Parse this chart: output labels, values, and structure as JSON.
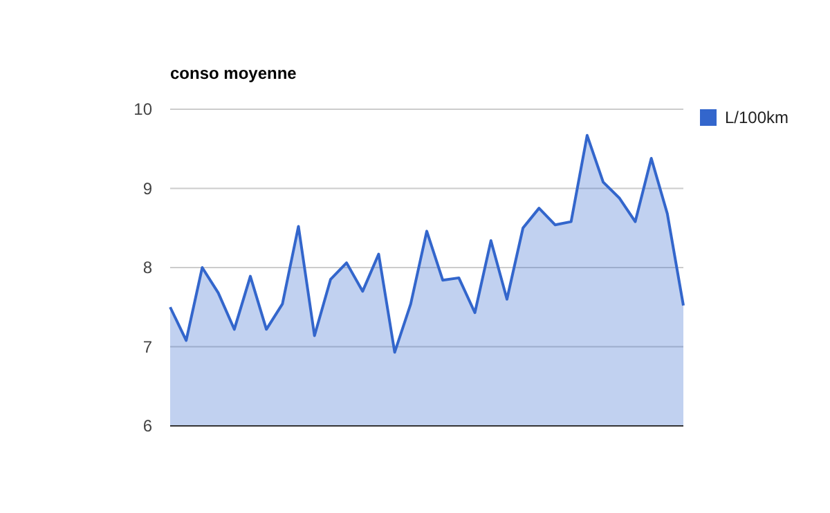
{
  "chart_data": {
    "type": "area",
    "title": "conso moyenne",
    "categories": [
      null,
      null,
      null,
      null,
      null,
      null,
      null,
      null,
      null,
      null,
      null,
      null,
      null,
      null,
      null,
      null,
      null,
      null,
      null,
      null,
      null,
      null,
      null,
      null,
      null,
      null,
      null,
      null,
      null,
      null,
      null,
      null,
      null
    ],
    "series": [
      {
        "name": "L/100km",
        "color": "#3366cc",
        "values": [
          7.5,
          7.08,
          8.0,
          7.68,
          7.22,
          7.89,
          7.22,
          7.54,
          8.52,
          7.14,
          7.85,
          8.06,
          7.7,
          8.17,
          6.93,
          7.54,
          8.46,
          7.84,
          7.87,
          7.43,
          8.34,
          7.6,
          8.5,
          8.75,
          8.54,
          8.58,
          9.67,
          9.08,
          8.88,
          8.58,
          9.38,
          8.68,
          7.52
        ]
      }
    ],
    "ylim": [
      6,
      10
    ],
    "yticks": [
      6,
      7,
      8,
      9,
      10
    ],
    "grid": "y",
    "legend": "right"
  }
}
